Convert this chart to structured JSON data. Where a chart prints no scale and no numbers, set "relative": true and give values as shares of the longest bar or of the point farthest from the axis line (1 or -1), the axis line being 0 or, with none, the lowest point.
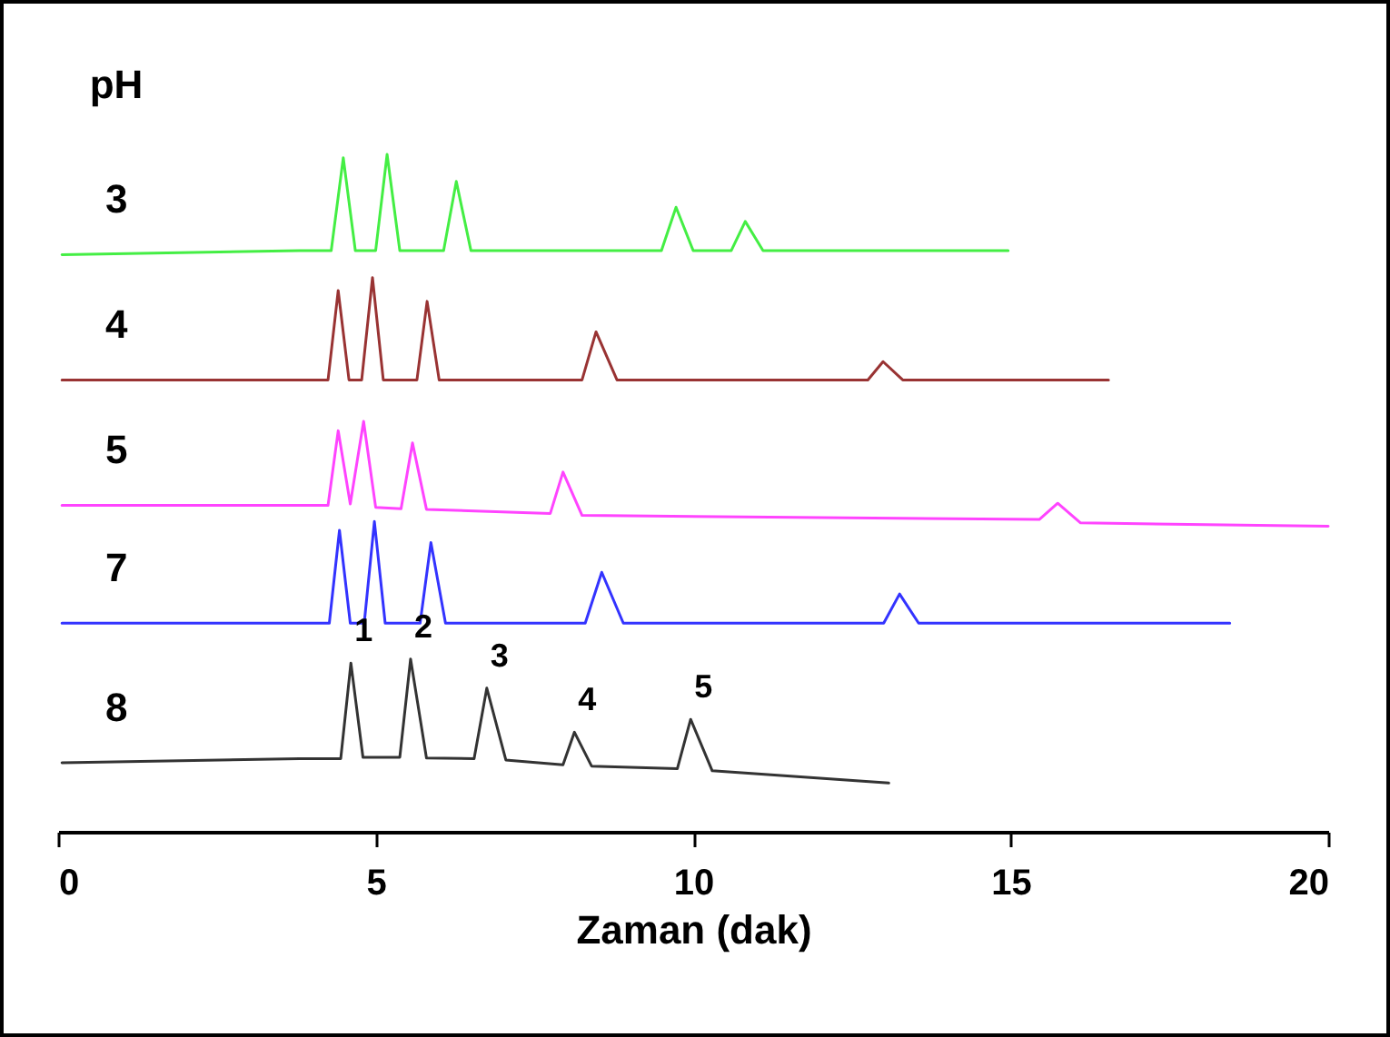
{
  "chart_data": {
    "type": "line",
    "relative": true,
    "xlabel": "Zaman (dak)",
    "legend_title": "pH",
    "xlim": [
      0,
      20
    ],
    "xticks": [
      0,
      5,
      10,
      15,
      20
    ],
    "series": [
      {
        "name": "3",
        "color": "#44ee44",
        "x": [
          0.06,
          3.8,
          4.3,
          4.49,
          4.68,
          5.0,
          5.18,
          5.38,
          6.07,
          6.27,
          6.5,
          9.5,
          9.73,
          10.0,
          10.6,
          10.82,
          11.1,
          14.96
        ],
        "values": [
          0.852,
          0.858,
          0.858,
          0.995,
          0.858,
          0.858,
          1.0,
          0.858,
          0.858,
          0.96,
          0.858,
          0.858,
          0.922,
          0.858,
          0.858,
          0.901,
          0.858,
          0.858
        ]
      },
      {
        "name": "4",
        "color": "#993333",
        "x": [
          0.06,
          3.8,
          4.25,
          4.41,
          4.58,
          4.78,
          4.95,
          5.12,
          5.65,
          5.81,
          6.0,
          8.25,
          8.47,
          8.8,
          12.75,
          12.99,
          13.3,
          16.54
        ],
        "values": [
          0.667,
          0.667,
          0.667,
          0.799,
          0.667,
          0.667,
          0.818,
          0.667,
          0.667,
          0.783,
          0.667,
          0.667,
          0.738,
          0.667,
          0.667,
          0.694,
          0.667,
          0.667
        ]
      },
      {
        "name": "5",
        "color": "#ff44ff",
        "x": [
          0.06,
          4.25,
          4.41,
          4.6,
          4.81,
          5.0,
          5.4,
          5.58,
          5.8,
          7.75,
          7.95,
          8.25,
          15.45,
          15.74,
          16.1,
          20
        ],
        "values": [
          0.482,
          0.482,
          0.592,
          0.484,
          0.606,
          0.479,
          0.477,
          0.574,
          0.476,
          0.47,
          0.531,
          0.467,
          0.461,
          0.485,
          0.456,
          0.451
        ]
      },
      {
        "name": "7",
        "color": "#3333ff",
        "x": [
          0.06,
          3.8,
          4.27,
          4.43,
          4.6,
          4.82,
          4.98,
          5.15,
          5.7,
          5.87,
          6.1,
          8.3,
          8.56,
          8.9,
          13.0,
          13.25,
          13.55,
          18.45
        ],
        "values": [
          0.308,
          0.308,
          0.308,
          0.445,
          0.308,
          0.308,
          0.458,
          0.308,
          0.308,
          0.427,
          0.308,
          0.308,
          0.383,
          0.308,
          0.308,
          0.351,
          0.308,
          0.308
        ]
      },
      {
        "name": "8",
        "color": "#333333",
        "x": [
          0.06,
          3.8,
          4.45,
          4.61,
          4.8,
          5.38,
          5.55,
          5.8,
          6.55,
          6.75,
          7.05,
          7.95,
          8.13,
          8.4,
          9.75,
          9.96,
          10.3,
          13.08
        ],
        "values": [
          0.102,
          0.108,
          0.108,
          0.249,
          0.11,
          0.11,
          0.255,
          0.109,
          0.108,
          0.212,
          0.106,
          0.099,
          0.147,
          0.097,
          0.093,
          0.166,
          0.09,
          0.072
        ]
      }
    ],
    "annotations": [
      {
        "text": "1",
        "x": 4.61,
        "y": 0.249
      },
      {
        "text": "2",
        "x": 5.55,
        "y": 0.255
      },
      {
        "text": "3",
        "x": 6.75,
        "y": 0.212
      },
      {
        "text": "4",
        "x": 8.13,
        "y": 0.147
      },
      {
        "text": "5",
        "x": 9.96,
        "y": 0.166
      }
    ]
  }
}
